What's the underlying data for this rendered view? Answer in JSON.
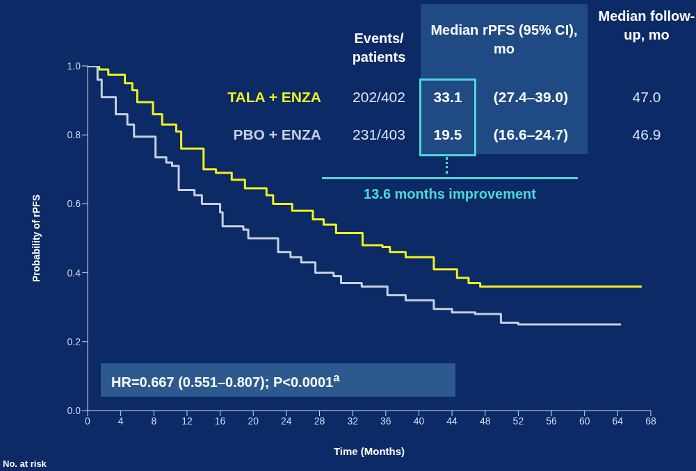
{
  "chart_data": {
    "type": "step",
    "xlabel": "Time (Months)",
    "ylabel": "Probability of rPFS",
    "xlim": [
      0,
      68
    ],
    "ylim": [
      0,
      1
    ],
    "xticks": [
      0,
      4,
      8,
      12,
      16,
      20,
      24,
      28,
      32,
      36,
      40,
      44,
      48,
      52,
      56,
      60,
      64,
      68
    ],
    "yticks": [
      {
        "value": 0,
        "label": "0.0"
      },
      {
        "value": 0.2,
        "label": "0.2"
      },
      {
        "value": 0.4,
        "label": "0.4"
      },
      {
        "value": 0.6,
        "label": "0.6"
      },
      {
        "value": 0.8,
        "label": "0.8"
      },
      {
        "value": 1,
        "label": "1.0"
      }
    ],
    "series": [
      {
        "name": "TALA + ENZA",
        "color": "#f2f21e",
        "x": [
          0,
          1.4,
          2.5,
          4.5,
          5.4,
          6,
          7.9,
          9,
          10.7,
          11.3,
          14,
          15.5,
          17.4,
          19,
          21.6,
          22.4,
          24.7,
          27.2,
          28.5,
          30,
          33.2,
          35.6,
          36.5,
          38.4,
          41.8,
          44.6,
          46,
          47.4,
          66.9
        ],
        "values": [
          1.0,
          0.99,
          0.975,
          0.95,
          0.93,
          0.895,
          0.86,
          0.83,
          0.81,
          0.76,
          0.7,
          0.69,
          0.67,
          0.645,
          0.625,
          0.6,
          0.58,
          0.555,
          0.54,
          0.515,
          0.48,
          0.475,
          0.46,
          0.445,
          0.41,
          0.385,
          0.37,
          0.36,
          0.36
        ]
      },
      {
        "name": "PBO + ENZA",
        "color": "#c8cfe0",
        "x": [
          0,
          1.2,
          1.7,
          3.4,
          4.8,
          5.6,
          8.2,
          9.5,
          10.2,
          11,
          12.9,
          13.8,
          16,
          16.3,
          18.8,
          19.4,
          23,
          24.5,
          25.8,
          27.5,
          29.7,
          30.6,
          33.1,
          36.2,
          38.4,
          41.8,
          44,
          46.8,
          49.9,
          52,
          64.4
        ],
        "values": [
          1.0,
          0.96,
          0.91,
          0.86,
          0.83,
          0.795,
          0.735,
          0.72,
          0.71,
          0.64,
          0.625,
          0.6,
          0.575,
          0.535,
          0.525,
          0.5,
          0.46,
          0.445,
          0.43,
          0.4,
          0.39,
          0.37,
          0.36,
          0.335,
          0.32,
          0.295,
          0.285,
          0.28,
          0.255,
          0.25,
          0.25
        ]
      }
    ],
    "annotations": [
      "Events/ patients",
      "Median rPFS (95% CI), mo",
      "Median follow-up, mo",
      "202/402",
      "33.1",
      "(27.4–39.0)",
      "47.0",
      "231/403",
      "19.5",
      "(16.6–24.7)",
      "46.9",
      "13.6 months improvement",
      "HR=0.667 (0.551–0.807); P<0.0001$^{a}$",
      "No. at risk"
    ]
  }
}
